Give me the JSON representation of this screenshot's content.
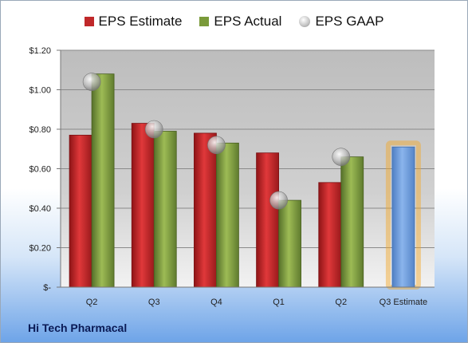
{
  "company_label": "Hi Tech Pharmacal",
  "chart_data": {
    "type": "bar",
    "categories": [
      "Q2",
      "Q3",
      "Q4",
      "Q1",
      "Q2",
      "Q3 Estimate"
    ],
    "series": [
      {
        "name": "EPS Estimate",
        "color": "#c0282a",
        "values": [
          0.77,
          0.83,
          0.78,
          0.68,
          0.53,
          null
        ]
      },
      {
        "name": "EPS Actual",
        "color": "#7a9a3a",
        "values": [
          1.08,
          0.79,
          0.73,
          0.44,
          0.66,
          null
        ]
      },
      {
        "name": "EPS GAAP",
        "color": "#a8a8a8",
        "marker": "circle",
        "values": [
          1.04,
          0.8,
          0.72,
          0.44,
          0.66,
          null
        ]
      }
    ],
    "forecast": {
      "category": "Q3 Estimate",
      "value": 0.71,
      "color": "#6b98d8",
      "glow": "#f5a623"
    },
    "yticks": [
      0,
      0.2,
      0.4,
      0.6,
      0.8,
      1.0,
      1.2
    ],
    "ytick_labels": [
      "$-",
      "$0.20",
      "$0.40",
      "$0.60",
      "$0.80",
      "$1.00",
      "$1.20"
    ],
    "ylim": [
      0,
      1.2
    ],
    "legend_position": "top",
    "grid": true
  }
}
